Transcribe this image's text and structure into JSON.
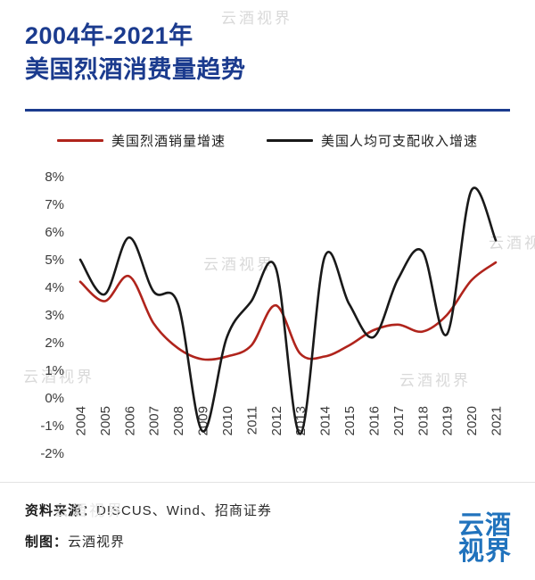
{
  "page": {
    "title_line1": "2004年-2021年",
    "title_line2": "美国烈酒消费量趋势"
  },
  "legend": [
    {
      "label": "美国烈酒销量增速",
      "color": "#b0241c"
    },
    {
      "label": "美国人均可支配收入增速",
      "color": "#191919"
    }
  ],
  "chart_data": {
    "type": "line",
    "title": "2004年-2021年美国烈酒消费量趋势",
    "x": [
      2004,
      2005,
      2006,
      2007,
      2008,
      2009,
      2010,
      2011,
      2012,
      2013,
      2014,
      2015,
      2016,
      2017,
      2018,
      2019,
      2020,
      2021
    ],
    "series": [
      {
        "name": "美国烈酒销量增速",
        "color": "#b0241c",
        "values": [
          4.2,
          3.5,
          4.4,
          2.7,
          1.8,
          1.4,
          1.5,
          1.9,
          3.35,
          1.6,
          1.5,
          1.9,
          2.45,
          2.65,
          2.4,
          3.0,
          4.25,
          4.9
        ]
      },
      {
        "name": "美国人均可支配收入增速",
        "color": "#191919",
        "values": [
          5.0,
          3.75,
          5.8,
          3.85,
          3.4,
          -1.2,
          2.2,
          3.5,
          4.7,
          -1.3,
          5.1,
          3.4,
          2.2,
          4.3,
          5.3,
          2.3,
          7.5,
          5.7
        ]
      }
    ],
    "ylim": [
      -2,
      8
    ],
    "ytick_step": 1,
    "ytick_suffix": "%",
    "grid": false,
    "legend_position": "top",
    "x_label_rotation": 90
  },
  "footer": {
    "source_label": "资料来源：",
    "source_value": "DISCUS、Wind、招商证券",
    "credit_label": "制图：",
    "credit_value": "云酒视界"
  },
  "logo": {
    "line1": "云酒",
    "line2": "视界"
  },
  "watermark": {
    "text": "云酒视界"
  },
  "colors": {
    "accent": "#1b3b8e",
    "red_line": "#b0241c",
    "black_line": "#191919",
    "watermark": "#d9d9d9",
    "logo_blue": "#2173bd"
  }
}
